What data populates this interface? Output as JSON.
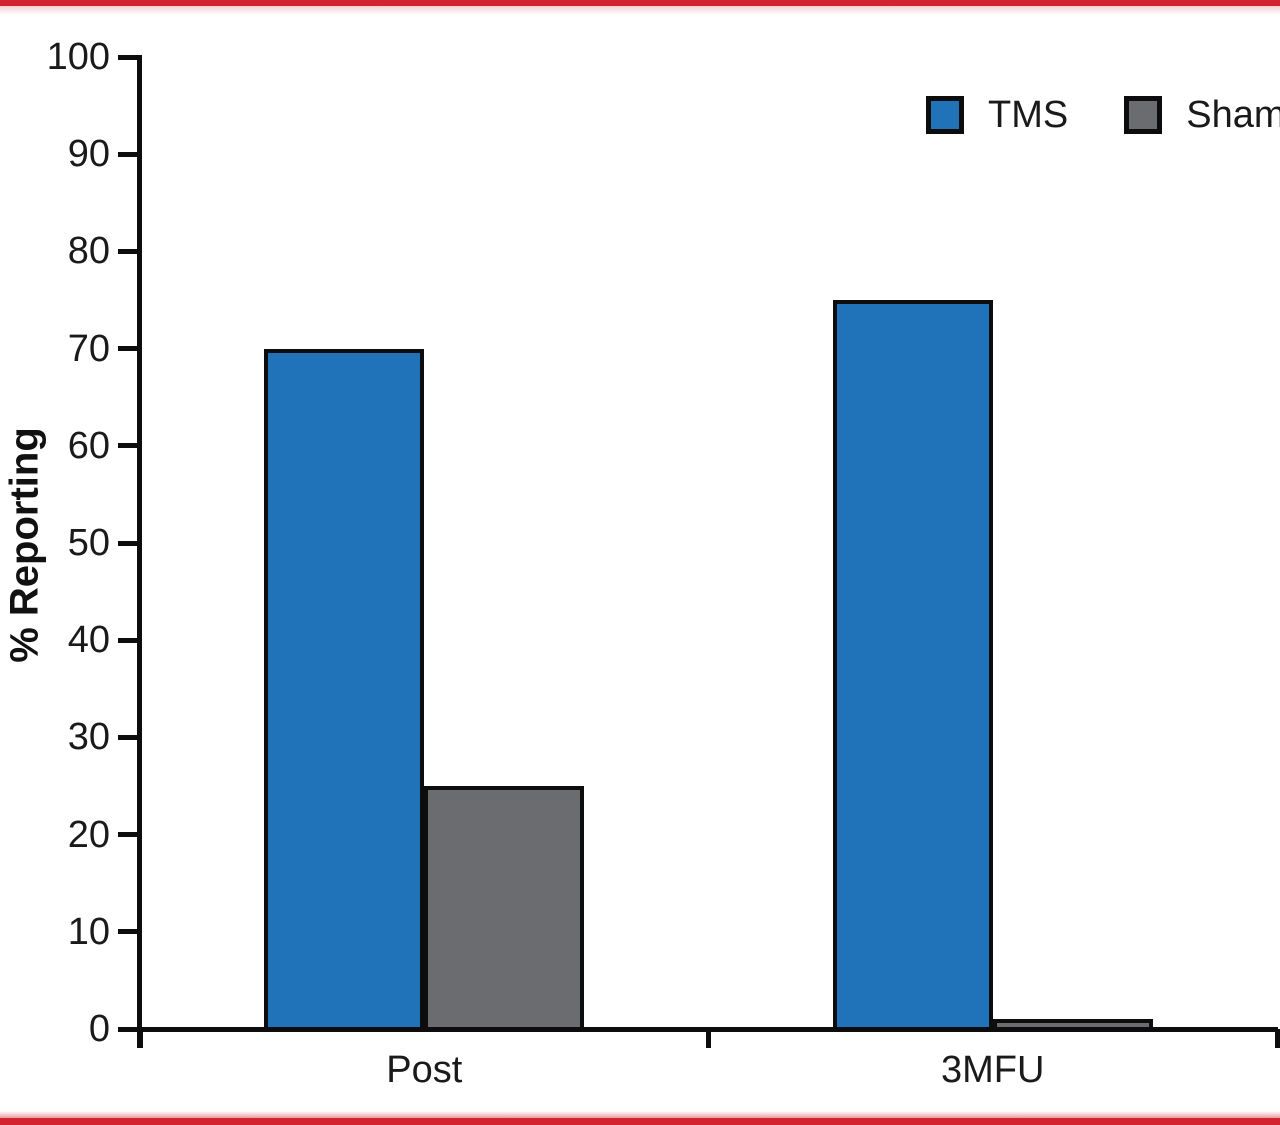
{
  "page": {
    "accent_red": "#D2232E",
    "background": "#ffffff"
  },
  "chart_data": {
    "type": "bar",
    "title": "",
    "xlabel": "",
    "ylabel": "% Reporting",
    "ylim": [
      0,
      100
    ],
    "ytick_step": 10,
    "grid": false,
    "legend_position": "top-right",
    "categories": [
      "Post",
      "3MFU"
    ],
    "series": [
      {
        "name": "TMS",
        "color": "#2173B9",
        "values": [
          70,
          75
        ]
      },
      {
        "name": "Sham",
        "color": "#6B6C70",
        "values": [
          25,
          1
        ]
      }
    ]
  }
}
